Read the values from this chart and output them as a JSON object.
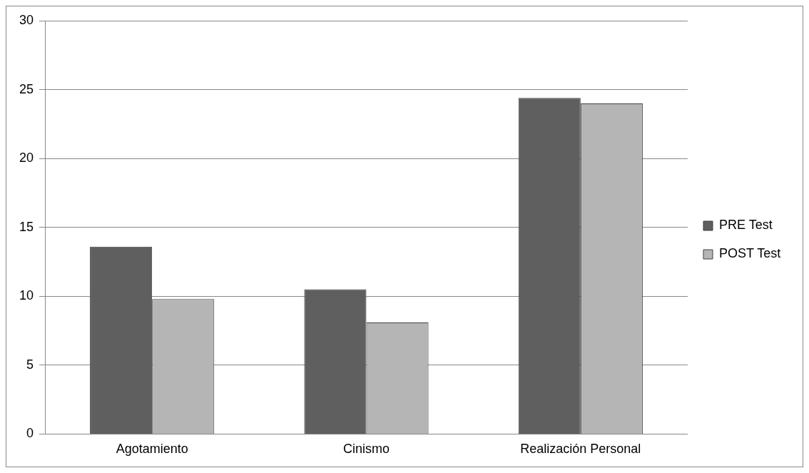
{
  "chart_data": {
    "type": "bar",
    "categories": [
      "Agotamiento",
      "Cinismo",
      "Realización Personal"
    ],
    "series": [
      {
        "name": "PRE Test",
        "color": "#5f5f5f",
        "values": [
          13.6,
          10.5,
          24.4
        ]
      },
      {
        "name": "POST Test",
        "color": "#b5b5b5",
        "values": [
          9.8,
          8.1,
          24.0
        ]
      }
    ],
    "ylim": [
      0,
      30
    ],
    "yticks": [
      0,
      5,
      10,
      15,
      20,
      25,
      30
    ],
    "grid": "y",
    "legend": "right"
  }
}
